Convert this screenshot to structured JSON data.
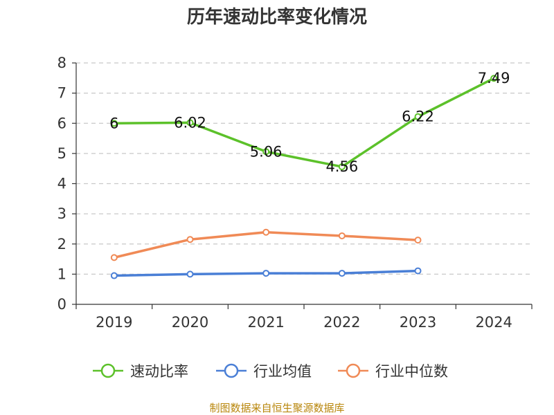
{
  "chart_data": {
    "type": "line",
    "title": "历年速动比率变化情况",
    "categories": [
      "2019",
      "2020",
      "2021",
      "2022",
      "2023",
      "2024"
    ],
    "y_ticks": [
      "0",
      "1",
      "2",
      "3",
      "4",
      "5",
      "6",
      "7",
      "8"
    ],
    "ylim": [
      0,
      8
    ],
    "grid": true,
    "legend_position": "bottom",
    "series": [
      {
        "name": "速动比率",
        "color": "#5cc12a",
        "values": [
          6,
          6.02,
          5.06,
          4.56,
          6.22,
          7.49
        ],
        "labels": [
          "6",
          "6.02",
          "5.06",
          "4.56",
          "6.22",
          "7.49"
        ]
      },
      {
        "name": "行业均值",
        "color": "#4a7fd6",
        "values": [
          0.95,
          1.0,
          1.03,
          1.03,
          1.11,
          null
        ]
      },
      {
        "name": "行业中位数",
        "color": "#f08a56",
        "values": [
          1.55,
          2.15,
          2.39,
          2.27,
          2.13,
          null
        ]
      }
    ],
    "source": "制图数据来自恒生聚源数据库"
  }
}
